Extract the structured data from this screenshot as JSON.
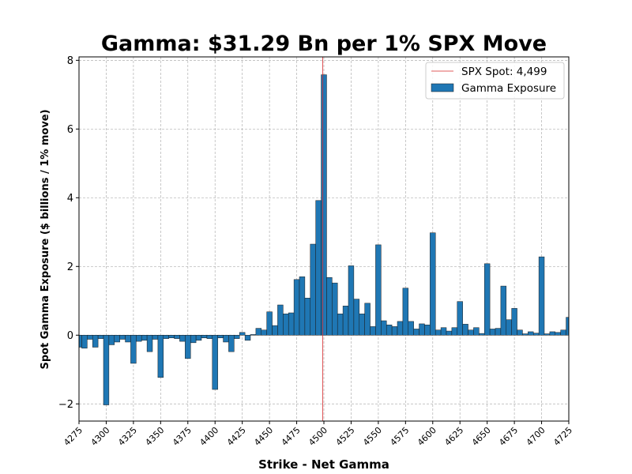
{
  "chart_data": {
    "type": "bar",
    "title": "Gamma: $31.29 Bn per 1% SPX Move",
    "xlabel": "Strike - Net Gamma",
    "ylabel": "Spot Gamma Exposure ($ billions / 1% move)",
    "xlim": [
      4275,
      4725
    ],
    "ylim": [
      -2.5,
      8.1
    ],
    "xticks": [
      4275,
      4300,
      4325,
      4350,
      4375,
      4400,
      4425,
      4450,
      4475,
      4500,
      4525,
      4550,
      4575,
      4600,
      4625,
      4650,
      4675,
      4700,
      4725
    ],
    "yticks": [
      -2,
      0,
      2,
      4,
      6,
      8
    ],
    "bar_width": 5,
    "grid": true,
    "legend_position": "top-right",
    "spot": {
      "value": 4499,
      "label": "SPX Spot: 4,499",
      "color": "#d62728"
    },
    "series": [
      {
        "name": "Gamma Exposure",
        "color": "#1f77b4",
        "x": [
          4275,
          4280,
          4285,
          4290,
          4295,
          4300,
          4305,
          4310,
          4315,
          4320,
          4325,
          4330,
          4335,
          4340,
          4345,
          4350,
          4355,
          4360,
          4365,
          4370,
          4375,
          4380,
          4385,
          4390,
          4395,
          4400,
          4405,
          4410,
          4415,
          4420,
          4425,
          4430,
          4435,
          4440,
          4445,
          4450,
          4455,
          4460,
          4465,
          4470,
          4475,
          4480,
          4485,
          4490,
          4495,
          4500,
          4505,
          4510,
          4515,
          4520,
          4525,
          4530,
          4535,
          4540,
          4545,
          4550,
          4555,
          4560,
          4565,
          4570,
          4575,
          4580,
          4585,
          4590,
          4595,
          4600,
          4605,
          4610,
          4615,
          4620,
          4625,
          4630,
          4635,
          4640,
          4645,
          4650,
          4655,
          4660,
          4665,
          4670,
          4675,
          4680,
          4685,
          4690,
          4695,
          4700,
          4705,
          4710,
          4715,
          4720,
          4725
        ],
        "values": [
          -0.35,
          -0.38,
          -0.12,
          -0.35,
          -0.1,
          -2.03,
          -0.28,
          -0.2,
          -0.12,
          -0.2,
          -0.82,
          -0.18,
          -0.15,
          -0.48,
          -0.12,
          -1.23,
          -0.1,
          -0.08,
          -0.1,
          -0.18,
          -0.68,
          -0.22,
          -0.15,
          -0.08,
          -0.1,
          -1.58,
          -0.08,
          -0.2,
          -0.48,
          -0.1,
          0.08,
          -0.15,
          0.02,
          0.2,
          0.15,
          0.68,
          0.28,
          0.88,
          0.62,
          0.65,
          1.62,
          1.7,
          1.08,
          2.65,
          3.92,
          7.58,
          1.68,
          1.52,
          0.62,
          0.85,
          2.02,
          1.05,
          0.62,
          0.93,
          0.25,
          2.63,
          0.42,
          0.3,
          0.25,
          0.4,
          1.37,
          0.4,
          0.18,
          0.33,
          0.3,
          2.98,
          0.15,
          0.22,
          0.12,
          0.22,
          0.98,
          0.32,
          0.15,
          0.22,
          0.05,
          2.08,
          0.18,
          0.2,
          1.43,
          0.45,
          0.78,
          0.15,
          0.04,
          0.1,
          0.06,
          2.28,
          0.04,
          0.1,
          0.08,
          0.15,
          0.52
        ]
      }
    ]
  }
}
